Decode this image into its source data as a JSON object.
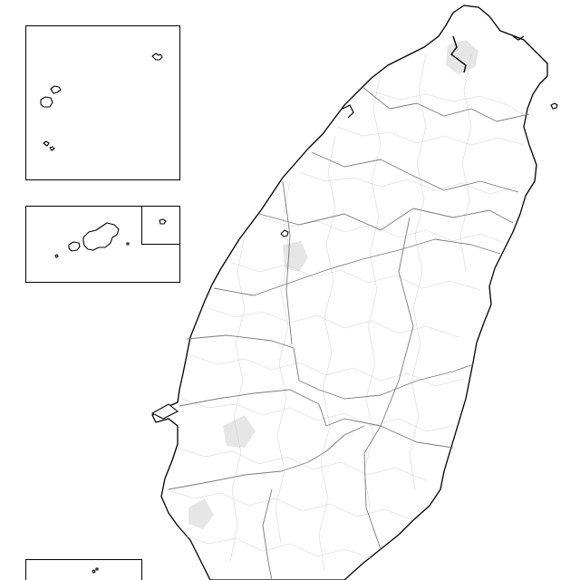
{
  "map": {
    "background_color": "#ffffff",
    "coastline_color": "#000000",
    "county_border_color": "#7a7a7a",
    "district_line_color": "#c8c8c8",
    "insets": [
      {
        "name": "north-islands-inset"
      },
      {
        "name": "penghu-inset",
        "has_sub_inset": true
      },
      {
        "name": "south-islands-inset"
      }
    ]
  }
}
